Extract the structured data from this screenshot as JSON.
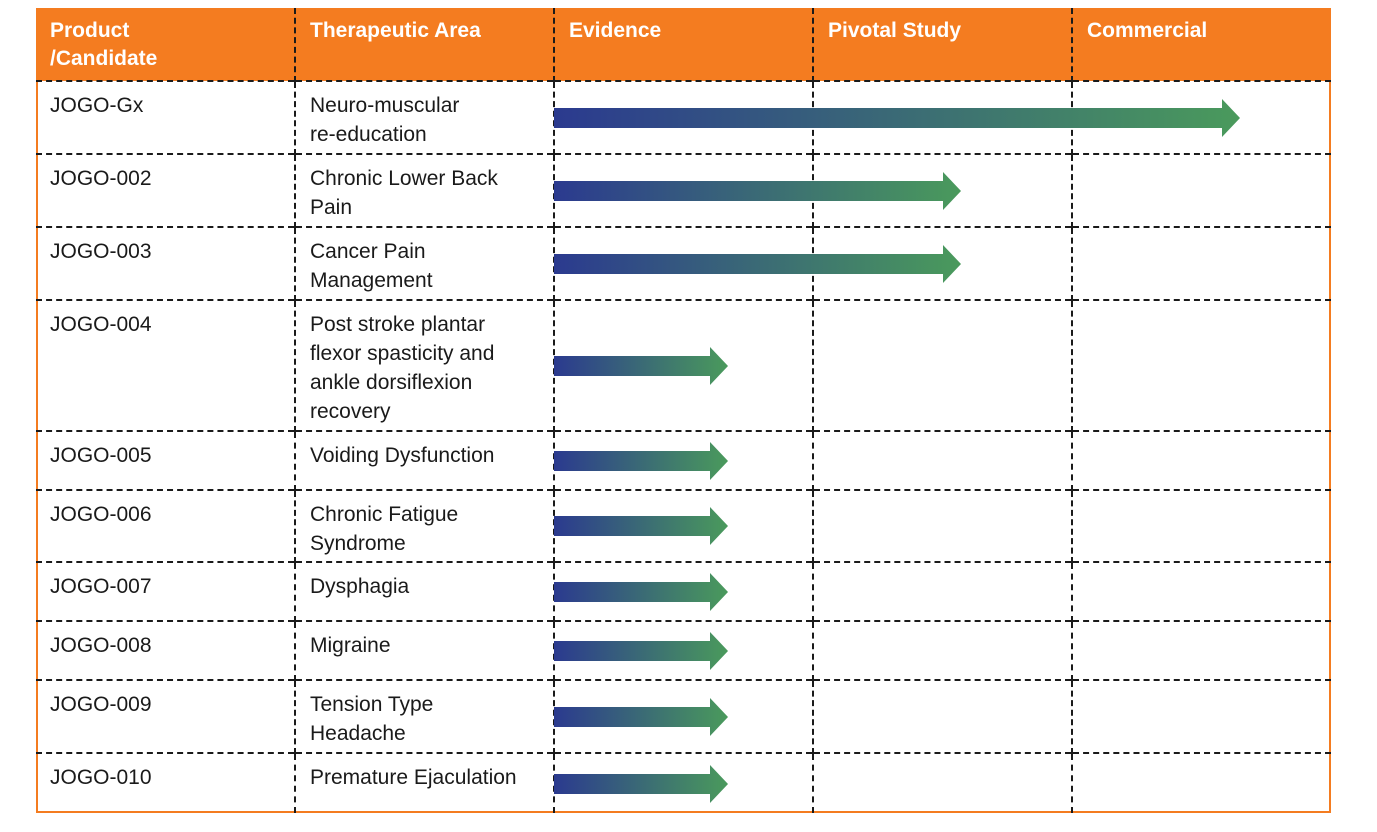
{
  "table": {
    "headers": [
      "Product\n/Candidate",
      "Therapeutic Area",
      "Evidence",
      "Pivotal Study",
      "Commercial"
    ],
    "rows": [
      {
        "product": "JOGO-Gx",
        "area": "Neuro-muscular\nre-education",
        "progress_stages": 2.65
      },
      {
        "product": "JOGO-002",
        "area": "Chronic Lower Back\nPain",
        "progress_stages": 1.57
      },
      {
        "product": "JOGO-003",
        "area": "Cancer Pain\nManagement",
        "progress_stages": 1.57
      },
      {
        "product": "JOGO-004",
        "area": "Post stroke plantar\nflexor spasticity and\nankle dorsiflexion\nrecovery",
        "progress_stages": 0.67
      },
      {
        "product": "JOGO-005",
        "area": "Voiding Dysfunction",
        "progress_stages": 0.67
      },
      {
        "product": "JOGO-006",
        "area": "Chronic Fatigue\nSyndrome",
        "progress_stages": 0.67
      },
      {
        "product": "JOGO-007",
        "area": "Dysphagia",
        "progress_stages": 0.67
      },
      {
        "product": "JOGO-008",
        "area": "Migraine",
        "progress_stages": 0.67
      },
      {
        "product": "JOGO-009",
        "area": "Tension Type\nHeadache",
        "progress_stages": 0.67
      },
      {
        "product": "JOGO-010",
        "area": "Premature Ejaculation",
        "progress_stages": 0.67
      }
    ]
  },
  "colors": {
    "header_bg": "#f47c20",
    "header_text": "#ffffff",
    "arrow_start": "#2b3a8f",
    "arrow_end": "#4a9a5c",
    "grid": "#1a1a1a"
  },
  "icons": {
    "progress_arrow": "right-arrow-icon"
  }
}
